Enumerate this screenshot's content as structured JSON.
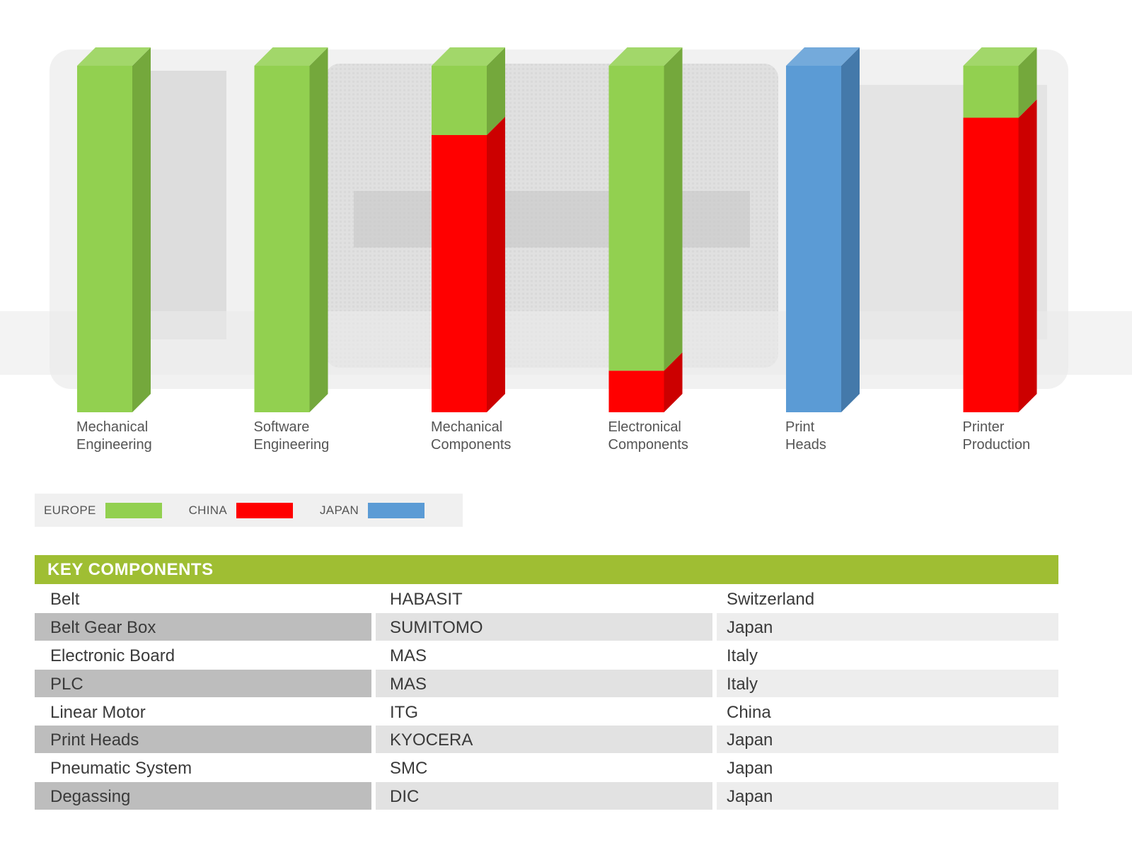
{
  "chart_data": {
    "type": "bar",
    "stacked": true,
    "three_d": true,
    "categories": [
      "Mechanical\nEngineering",
      "Software\nEngineering",
      "Mechanical\nComponents",
      "Electronical\nComponents",
      "Print\nHeads",
      "Printer\nProduction"
    ],
    "series": [
      {
        "name": "CHINA",
        "color": "#ff0000",
        "side_color": "#cc0000",
        "values": [
          0,
          0,
          80,
          12,
          0,
          85
        ]
      },
      {
        "name": "EUROPE",
        "color": "#92d050",
        "side_color": "#74a83c",
        "values": [
          100,
          100,
          20,
          88,
          0,
          15
        ]
      },
      {
        "name": "JAPAN",
        "color": "#5b9bd5",
        "side_color": "#4479aa",
        "values": [
          0,
          0,
          0,
          0,
          100,
          0
        ]
      }
    ],
    "ylim": [
      0,
      100
    ],
    "title": "",
    "xlabel": "",
    "ylabel": ""
  },
  "legend": {
    "items": [
      {
        "label": "EUROPE",
        "color": "#92d050"
      },
      {
        "label": "CHINA",
        "color": "#ff0000"
      },
      {
        "label": "JAPAN",
        "color": "#5b9bd5"
      }
    ]
  },
  "key_components": {
    "title": "KEY COMPONENTS",
    "rows": [
      {
        "component": "Belt",
        "supplier": "HABASIT",
        "country": "Switzerland"
      },
      {
        "component": "Belt Gear Box",
        "supplier": "SUMITOMO",
        "country": "Japan"
      },
      {
        "component": "Electronic Board",
        "supplier": "MAS",
        "country": "Italy"
      },
      {
        "component": "PLC",
        "supplier": "MAS",
        "country": "Italy"
      },
      {
        "component": "Linear Motor",
        "supplier": "ITG",
        "country": "China"
      },
      {
        "component": "Print Heads",
        "supplier": "KYOCERA",
        "country": "Japan"
      },
      {
        "component": "Pneumatic System",
        "supplier": "SMC",
        "country": "Japan"
      },
      {
        "component": "Degassing",
        "supplier": "DIC",
        "country": "Japan"
      }
    ]
  }
}
